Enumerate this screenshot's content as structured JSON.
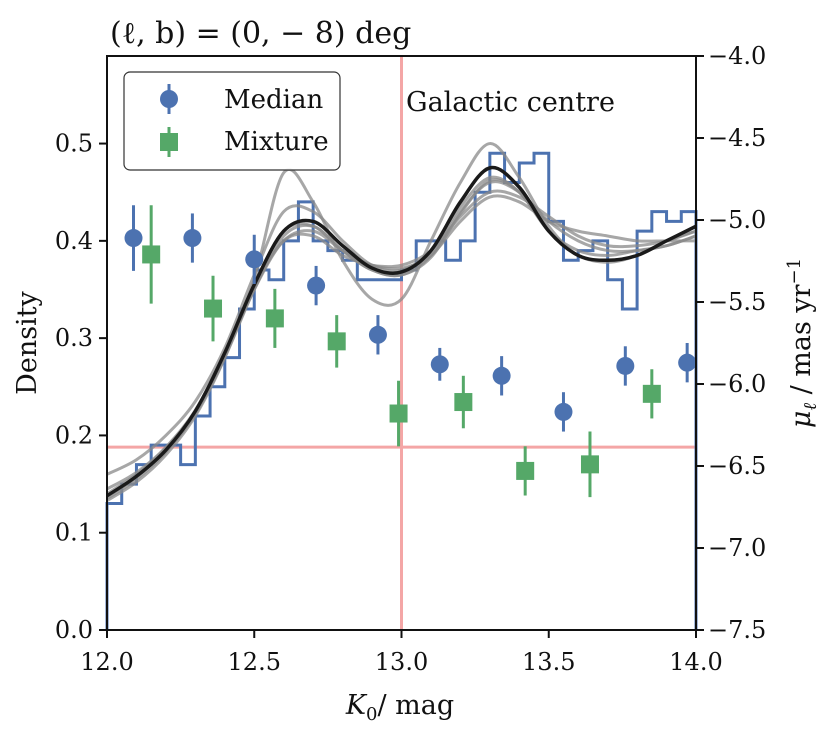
{
  "chart_data": {
    "type": "line",
    "title": "(ℓ, b) = (0, − 8) deg",
    "xlabel": "K",
    "xlabel_sub": "0",
    "xlabel_unit": "/ mag",
    "ylabel": "Density",
    "y2label": "μ",
    "y2label_sub": "ℓ",
    "y2label_unit": " / mas yr",
    "y2label_sup": "−1",
    "xlim": [
      12.0,
      14.0
    ],
    "ylim": [
      0.0,
      0.59
    ],
    "y2lim": [
      -7.5,
      -4.0
    ],
    "xticks": [
      12.0,
      12.5,
      13.0,
      13.5,
      14.0
    ],
    "xtick_labels": [
      "12.0",
      "12.5",
      "13.0",
      "13.5",
      "14.0"
    ],
    "yticks": [
      0.0,
      0.1,
      0.2,
      0.3,
      0.4,
      0.5
    ],
    "ytick_labels": [
      "0.0",
      "0.1",
      "0.2",
      "0.3",
      "0.4",
      "0.5"
    ],
    "y2ticks": [
      -7.5,
      -7.0,
      -6.5,
      -6.0,
      -5.5,
      -5.0,
      -4.5,
      -4.0
    ],
    "y2tick_labels": [
      "−7.5",
      "−7.0",
      "−6.5",
      "−6.0",
      "−5.5",
      "−5.0",
      "−4.5",
      "−4.0"
    ],
    "legend_position": "top-left",
    "legend": [
      {
        "label": "Median",
        "marker": "circle",
        "color": "#4c72b0"
      },
      {
        "label": "Mixture",
        "marker": "square",
        "color": "#55a868"
      }
    ],
    "annotations": [
      {
        "text": "Galactic centre",
        "x": 13.0,
        "y": 0.54
      }
    ],
    "reference_lines": {
      "vertical_x": 13.0,
      "horizontal_y": 0.188,
      "color": "#f4a6a6"
    },
    "histogram": {
      "color": "#4c72b0",
      "bin_width": 0.05,
      "bins_start": 12.0,
      "values": [
        0.13,
        0.15,
        0.17,
        0.19,
        0.19,
        0.17,
        0.22,
        0.25,
        0.28,
        0.33,
        0.37,
        0.36,
        0.4,
        0.44,
        0.4,
        0.39,
        0.38,
        0.36,
        0.36,
        0.36,
        0.37,
        0.4,
        0.4,
        0.38,
        0.4,
        0.45,
        0.49,
        0.46,
        0.48,
        0.49,
        0.42,
        0.38,
        0.39,
        0.4,
        0.36,
        0.33,
        0.41,
        0.43,
        0.42,
        0.43
      ]
    },
    "model_curves": {
      "color_samples": "#8a8a8a",
      "color_best": "#1a1a1a",
      "x": [
        12.0,
        12.1,
        12.2,
        12.3,
        12.4,
        12.5,
        12.6,
        12.7,
        12.8,
        12.9,
        13.0,
        13.1,
        13.2,
        13.3,
        13.4,
        13.5,
        13.6,
        13.7,
        13.8,
        13.9,
        14.0
      ],
      "best": [
        0.138,
        0.158,
        0.185,
        0.225,
        0.285,
        0.355,
        0.41,
        0.42,
        0.395,
        0.372,
        0.368,
        0.39,
        0.44,
        0.475,
        0.455,
        0.41,
        0.385,
        0.38,
        0.385,
        0.4,
        0.415
      ],
      "samples": [
        [
          0.16,
          0.175,
          0.2,
          0.235,
          0.29,
          0.365,
          0.43,
          0.43,
          0.4,
          0.375,
          0.37,
          0.39,
          0.435,
          0.465,
          0.45,
          0.41,
          0.39,
          0.385,
          0.39,
          0.395,
          0.405
        ],
        [
          0.133,
          0.152,
          0.18,
          0.22,
          0.28,
          0.36,
          0.47,
          0.44,
          0.38,
          0.34,
          0.34,
          0.4,
          0.46,
          0.5,
          0.465,
          0.415,
          0.385,
          0.38,
          0.385,
          0.4,
          0.41
        ],
        [
          0.14,
          0.16,
          0.187,
          0.225,
          0.283,
          0.35,
          0.4,
          0.41,
          0.39,
          0.375,
          0.372,
          0.385,
          0.42,
          0.445,
          0.44,
          0.42,
          0.41,
          0.405,
          0.4,
          0.4,
          0.4
        ],
        [
          0.135,
          0.155,
          0.183,
          0.222,
          0.28,
          0.35,
          0.405,
          0.415,
          0.39,
          0.37,
          0.365,
          0.385,
          0.43,
          0.46,
          0.45,
          0.42,
          0.4,
          0.39,
          0.39,
          0.395,
          0.405
        ],
        [
          0.145,
          0.162,
          0.188,
          0.226,
          0.284,
          0.352,
          0.4,
          0.405,
          0.385,
          0.375,
          0.375,
          0.39,
          0.425,
          0.45,
          0.445,
          0.425,
          0.405,
          0.395,
          0.395,
          0.4,
          0.41
        ],
        [
          0.137,
          0.157,
          0.185,
          0.224,
          0.283,
          0.353,
          0.41,
          0.415,
          0.39,
          0.37,
          0.365,
          0.383,
          0.428,
          0.462,
          0.45,
          0.41,
          0.385,
          0.378,
          0.385,
          0.4,
          0.415
        ]
      ]
    },
    "series": [
      {
        "name": "Median",
        "axis": "right",
        "marker": "circle",
        "color": "#4c72b0",
        "x": [
          12.09,
          12.29,
          12.5,
          12.71,
          12.92,
          13.13,
          13.34,
          13.55,
          13.76,
          13.97
        ],
        "y": [
          -5.11,
          -5.11,
          -5.24,
          -5.4,
          -5.7,
          -5.88,
          -5.95,
          -6.17,
          -5.89,
          -5.87
        ],
        "yerr": [
          0.2,
          0.15,
          0.15,
          0.12,
          0.12,
          0.1,
          0.12,
          0.12,
          0.12,
          0.12
        ]
      },
      {
        "name": "Mixture",
        "axis": "right",
        "marker": "square",
        "color": "#55a868",
        "x": [
          12.15,
          12.36,
          12.57,
          12.78,
          12.99,
          13.21,
          13.42,
          13.64,
          13.85
        ],
        "y": [
          -5.21,
          -5.54,
          -5.6,
          -5.74,
          -6.18,
          -6.11,
          -6.53,
          -6.49,
          -6.06
        ],
        "yerr": [
          0.3,
          0.2,
          0.18,
          0.16,
          0.2,
          0.16,
          0.15,
          0.2,
          0.15
        ]
      }
    ]
  }
}
